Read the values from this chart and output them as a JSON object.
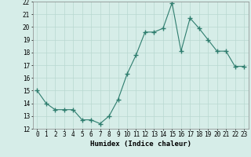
{
  "x": [
    0,
    1,
    2,
    3,
    4,
    5,
    6,
    7,
    8,
    9,
    10,
    11,
    12,
    13,
    14,
    15,
    16,
    17,
    18,
    19,
    20,
    21,
    22,
    23
  ],
  "y": [
    15.0,
    14.0,
    13.5,
    13.5,
    13.5,
    12.7,
    12.7,
    12.4,
    13.0,
    14.3,
    16.3,
    17.8,
    19.6,
    19.6,
    19.9,
    21.9,
    18.1,
    20.7,
    19.9,
    19.0,
    18.1,
    18.1,
    16.9,
    16.9
  ],
  "line_color": "#2e7d6e",
  "marker": "+",
  "marker_size": 4,
  "bg_color": "#d6ede8",
  "grid_color": "#b8d8d0",
  "xlabel": "Humidex (Indice chaleur)",
  "ylim": [
    12,
    22
  ],
  "xlim": [
    -0.5,
    23.5
  ],
  "yticks": [
    12,
    13,
    14,
    15,
    16,
    17,
    18,
    19,
    20,
    21,
    22
  ],
  "xticks": [
    0,
    1,
    2,
    3,
    4,
    5,
    6,
    7,
    8,
    9,
    10,
    11,
    12,
    13,
    14,
    15,
    16,
    17,
    18,
    19,
    20,
    21,
    22,
    23
  ],
  "tick_fontsize": 5.5,
  "xlabel_fontsize": 6.5,
  "line_width": 0.8,
  "marker_color": "#2e7d6e"
}
